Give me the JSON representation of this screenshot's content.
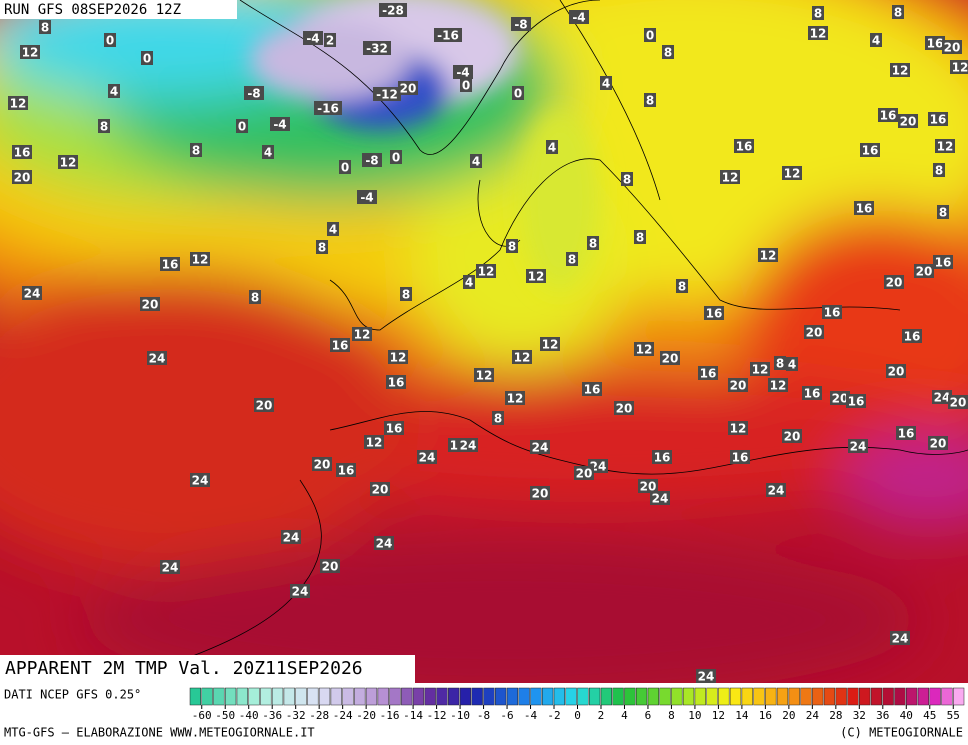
{
  "header": {
    "run": "RUN GFS 08SEP2026 12Z"
  },
  "title": "APPARENT 2M TMP Val. 20Z11SEP2026",
  "footer": {
    "source": "DATI NCEP GFS 0.25°",
    "credit": "MTG-GFS — ELABORAZIONE WWW.METEOGIORNALE.IT",
    "copyright": "(C) METEOGIORNALE"
  },
  "colorbar": {
    "ticks": [
      -60,
      -50,
      -40,
      -36,
      -32,
      -28,
      -24,
      -20,
      -16,
      -14,
      -12,
      -10,
      -8,
      -6,
      -4,
      -2,
      0,
      2,
      4,
      6,
      8,
      10,
      12,
      14,
      16,
      20,
      24,
      28,
      32,
      36,
      40,
      45,
      55
    ]
  },
  "map_labels": [
    -28,
    -8,
    -4,
    8,
    0,
    0,
    12,
    -4,
    2,
    -32,
    -16,
    8,
    8,
    12,
    4,
    16,
    20,
    0,
    8,
    12,
    4,
    -8,
    -16,
    -12,
    20,
    -4,
    0,
    0,
    4,
    8,
    8,
    0,
    -4,
    12,
    12,
    16,
    20,
    16,
    16,
    12,
    8,
    4,
    -8,
    0,
    4,
    4,
    16,
    16,
    12,
    20,
    0,
    -4,
    8,
    12,
    12,
    8,
    16,
    8,
    4,
    8,
    8,
    8,
    8,
    16,
    12,
    12,
    12,
    4,
    8,
    12,
    16,
    20,
    24,
    8,
    8,
    8,
    20,
    20,
    16,
    16,
    12,
    16,
    12,
    20,
    16,
    12,
    12,
    12,
    20,
    24,
    12,
    16,
    12,
    8,
    4,
    20,
    12,
    16,
    20,
    20,
    16,
    24,
    20,
    16,
    16,
    12,
    8,
    20,
    20,
    16,
    12,
    20,
    16,
    20,
    12,
    12,
    24,
    24,
    24,
    24,
    16,
    16,
    20,
    16,
    24,
    20,
    24,
    20,
    20,
    20,
    24,
    24,
    24,
    24,
    24,
    20,
    24,
    24,
    24
  ]
}
